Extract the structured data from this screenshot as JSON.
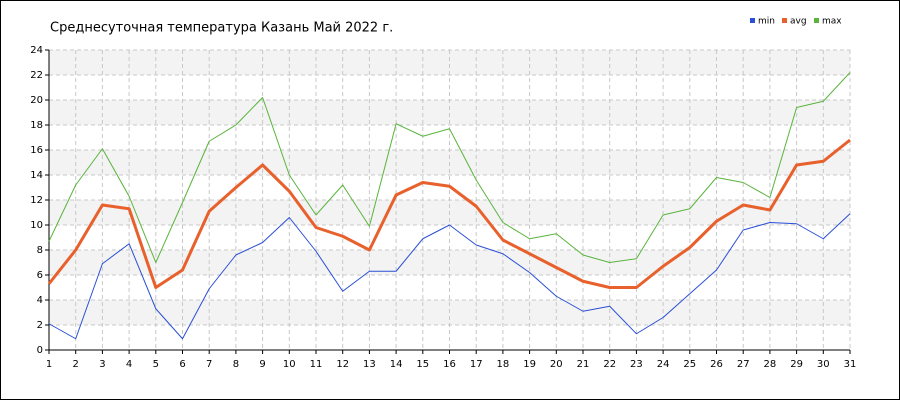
{
  "chart_data": {
    "type": "line",
    "title": "Среднесуточная температура Казань  Май 2022 г.",
    "x": [
      1,
      2,
      3,
      4,
      5,
      6,
      7,
      8,
      9,
      10,
      11,
      12,
      13,
      14,
      15,
      16,
      17,
      18,
      19,
      20,
      21,
      22,
      23,
      24,
      25,
      26,
      27,
      28,
      29,
      30,
      31
    ],
    "xlim": [
      1,
      31
    ],
    "xticks": [
      1,
      2,
      3,
      4,
      5,
      6,
      7,
      8,
      9,
      10,
      11,
      12,
      13,
      14,
      15,
      16,
      17,
      18,
      19,
      20,
      21,
      22,
      23,
      24,
      25,
      26,
      27,
      28,
      29,
      30,
      31
    ],
    "ylim": [
      0,
      24
    ],
    "yticks": [
      0,
      2,
      4,
      6,
      8,
      10,
      12,
      14,
      16,
      18,
      20,
      22,
      24
    ],
    "grid": true,
    "legend": "top-right",
    "series": [
      {
        "name": "min",
        "color": "#2a4fd6",
        "values": [
          2.1,
          0.9,
          6.9,
          8.5,
          3.3,
          0.9,
          4.9,
          7.6,
          8.6,
          10.6,
          7.9,
          4.7,
          6.3,
          6.3,
          8.9,
          10.0,
          8.4,
          7.7,
          6.2,
          4.3,
          3.1,
          3.5,
          1.3,
          2.6,
          4.5,
          6.4,
          9.6,
          10.2,
          10.1,
          8.9,
          10.9
        ]
      },
      {
        "name": "avg",
        "color": "#e8602c",
        "values": [
          5.3,
          8.0,
          11.6,
          11.3,
          5.0,
          6.4,
          11.1,
          13.0,
          14.8,
          12.7,
          9.8,
          9.1,
          8.0,
          12.4,
          13.4,
          13.1,
          11.5,
          8.8,
          7.7,
          6.6,
          5.5,
          5.0,
          5.0,
          6.7,
          8.2,
          10.3,
          11.6,
          11.2,
          14.8,
          15.1,
          16.8
        ]
      },
      {
        "name": "max",
        "color": "#5ab43c",
        "values": [
          8.7,
          13.2,
          16.1,
          12.3,
          7.0,
          11.8,
          16.7,
          18.0,
          20.2,
          14.0,
          10.8,
          13.2,
          9.9,
          18.1,
          17.1,
          17.7,
          13.6,
          10.2,
          8.9,
          9.3,
          7.6,
          7.0,
          7.3,
          10.8,
          11.3,
          13.8,
          13.4,
          12.2,
          19.4,
          19.9,
          22.2
        ]
      }
    ]
  }
}
